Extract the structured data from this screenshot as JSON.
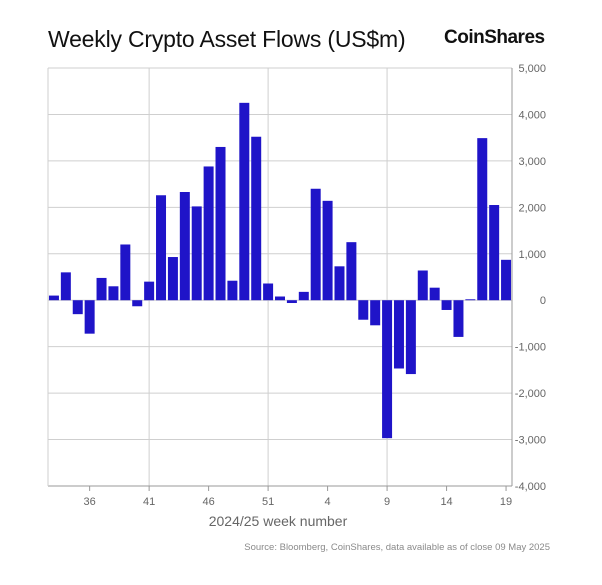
{
  "header": {
    "title": "Weekly Crypto Asset Flows (US$m)",
    "brand": "CoinShares"
  },
  "footer": {
    "source": "Source: Bloomberg, CoinShares, data available as of close 09 May 2025"
  },
  "colors": {
    "bar": "#1f14c8",
    "grid": "#cfcfcf",
    "axis": "#999999",
    "text": "#666666"
  },
  "chart_data": {
    "type": "bar",
    "title": "Weekly Crypto Asset Flows (US$m)",
    "xlabel": "2024/25 week number",
    "ylabel": "",
    "y_axis_side": "right",
    "ylim": [
      -4000,
      5000
    ],
    "yticks": [
      5000,
      4000,
      3000,
      2000,
      1000,
      0,
      -1000,
      -2000,
      -3000,
      -4000
    ],
    "ytick_labels": [
      "5,000",
      "4,000",
      "3,000",
      "2,000",
      "1,000",
      "0",
      "-1,000",
      "-2,000",
      "-3,000",
      "-4,000"
    ],
    "xtick_labels": [
      "36",
      "41",
      "46",
      "51",
      "4",
      "9",
      "14",
      "19"
    ],
    "vertical_gridlines_at": [
      "41",
      "51",
      "9"
    ],
    "categories": [
      "33",
      "34",
      "35",
      "36",
      "37",
      "38",
      "39",
      "40",
      "41",
      "42",
      "43",
      "44",
      "45",
      "46",
      "47",
      "48",
      "49",
      "50",
      "51",
      "52",
      "1",
      "2",
      "3",
      "4",
      "5",
      "6",
      "7",
      "8",
      "9",
      "10",
      "11",
      "12",
      "13",
      "14",
      "15",
      "16",
      "17",
      "18",
      "19"
    ],
    "series": [
      {
        "values": [
          100,
          600,
          -300,
          -720,
          480,
          300,
          1200,
          -130,
          400,
          2260,
          930,
          2330,
          2020,
          2880,
          3300,
          420,
          4250,
          3520,
          360,
          80,
          -60,
          180,
          2400,
          2140,
          730,
          1250,
          -420,
          -540,
          -2970,
          -1470,
          -1590,
          640,
          270,
          -210,
          -790,
          20,
          3490,
          2050,
          870
        ]
      }
    ],
    "grid": true,
    "legend": "none"
  }
}
